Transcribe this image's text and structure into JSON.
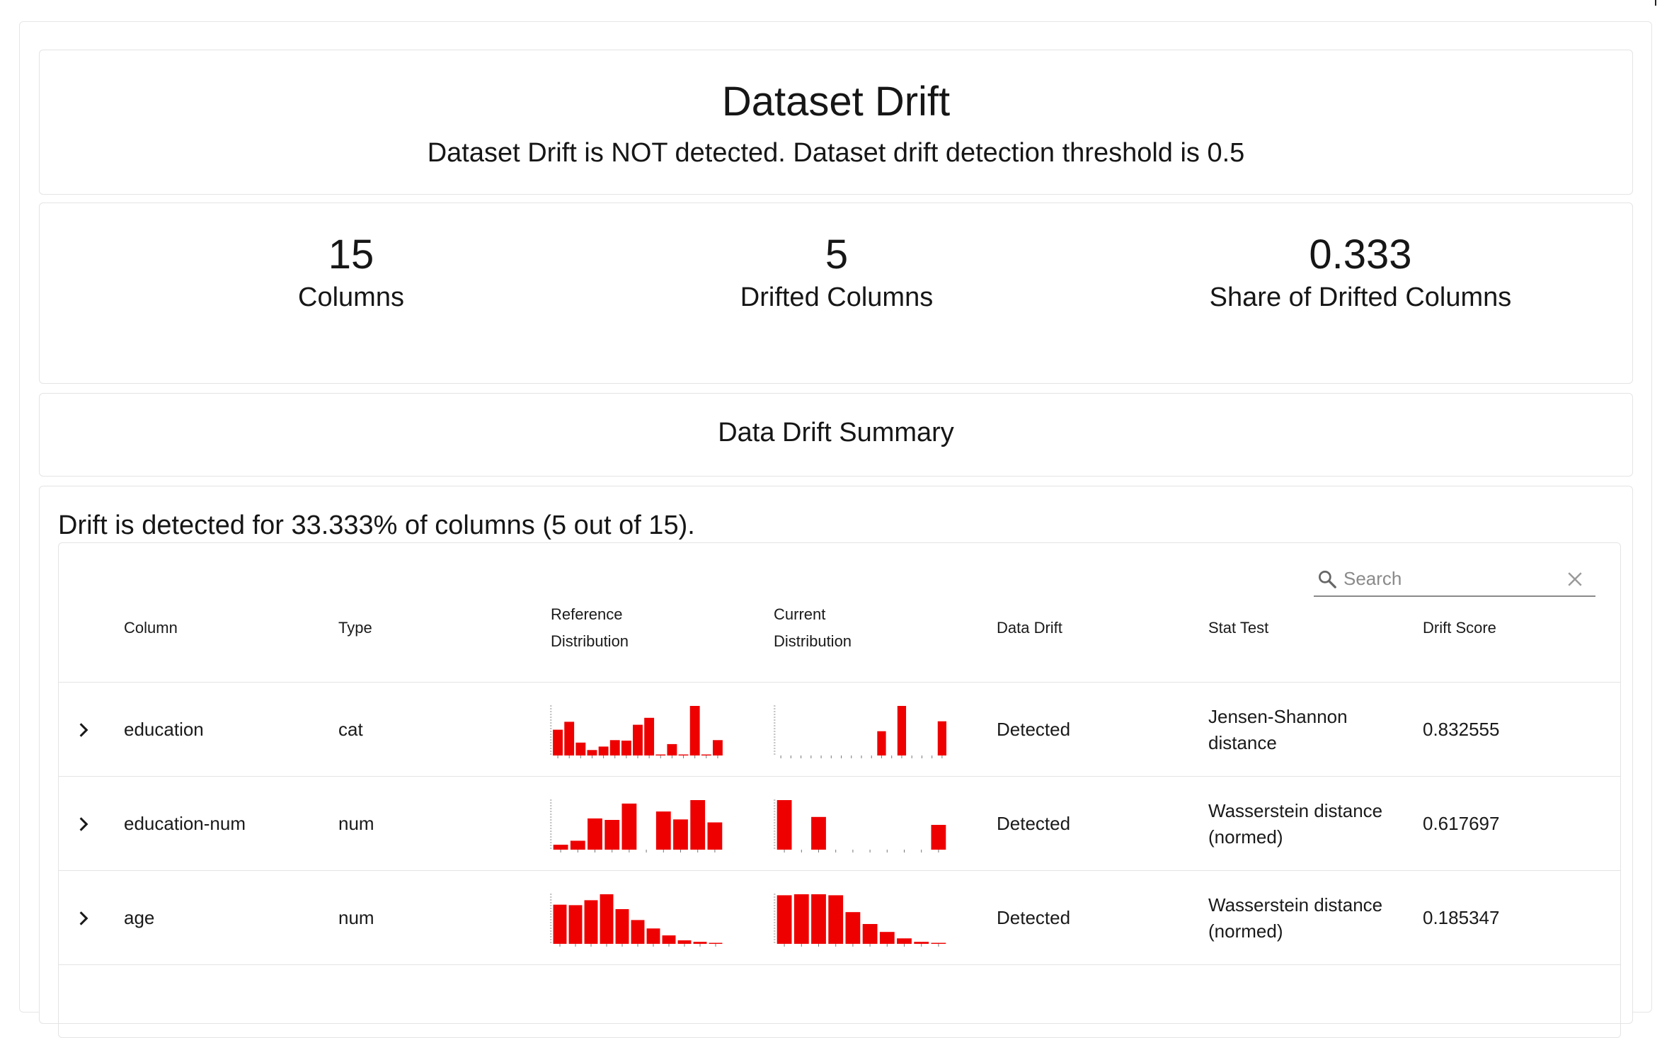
{
  "dataset_drift": {
    "title": "Dataset Drift",
    "subtitle": "Dataset Drift is NOT detected. Dataset drift detection threshold is 0.5"
  },
  "counters": [
    {
      "value": "15",
      "label": "Columns"
    },
    {
      "value": "5",
      "label": "Drifted Columns"
    },
    {
      "value": "0.333",
      "label": "Share of Drifted Columns"
    }
  ],
  "summary": {
    "title": "Data Drift Summary"
  },
  "table": {
    "caption": "Drift is detected for 33.333% of columns (5 out of 15).",
    "search": {
      "placeholder": "Search",
      "value": ""
    },
    "headers": {
      "column": "Column",
      "type": "Type",
      "reference_line1": "Reference",
      "reference_line2": "Distribution",
      "current_line1": "Current",
      "current_line2": "Distribution",
      "data_drift": "Data Drift",
      "stat_test": "Stat Test",
      "drift_score": "Drift Score"
    },
    "rows": [
      {
        "column": "education",
        "type": "cat",
        "data_drift": "Detected",
        "stat_test_line1": "Jensen-Shannon",
        "stat_test_line2": "distance",
        "drift_score": "0.832555",
        "reference_hist": [
          0.52,
          0.68,
          0.26,
          0.11,
          0.18,
          0.31,
          0.3,
          0.62,
          0.76,
          0.02,
          0.23,
          0.02,
          1.0,
          0.02,
          0.31
        ],
        "current_hist": [
          0.0,
          0.0,
          0.0,
          0.0,
          0.0,
          0.0,
          0.0,
          0.0,
          0.0,
          0.0,
          0.49,
          0.0,
          1.0,
          0.0,
          0.0,
          0.0,
          0.69
        ]
      },
      {
        "column": "education-num",
        "type": "num",
        "data_drift": "Detected",
        "stat_test_line1": "Wasserstein distance",
        "stat_test_line2": "(normed)",
        "drift_score": "0.617697",
        "reference_hist": [
          0.1,
          0.18,
          0.63,
          0.6,
          0.93,
          0.0,
          0.77,
          0.61,
          1.0,
          0.55
        ],
        "current_hist": [
          1.0,
          0.0,
          0.66,
          0.0,
          0.0,
          0.0,
          0.0,
          0.0,
          0.0,
          0.5
        ]
      },
      {
        "column": "age",
        "type": "num",
        "data_drift": "Detected",
        "stat_test_line1": "Wasserstein distance",
        "stat_test_line2": "(normed)",
        "drift_score": "0.185347",
        "reference_hist": [
          0.79,
          0.78,
          0.88,
          1.0,
          0.7,
          0.48,
          0.31,
          0.17,
          0.07,
          0.04,
          0.02
        ],
        "current_hist": [
          0.98,
          1.0,
          1.0,
          0.98,
          0.64,
          0.4,
          0.24,
          0.11,
          0.04,
          0.02
        ]
      }
    ]
  },
  "colors": {
    "bar": "#ee0000",
    "axis": "#777777",
    "border": "#e4e4e4"
  }
}
